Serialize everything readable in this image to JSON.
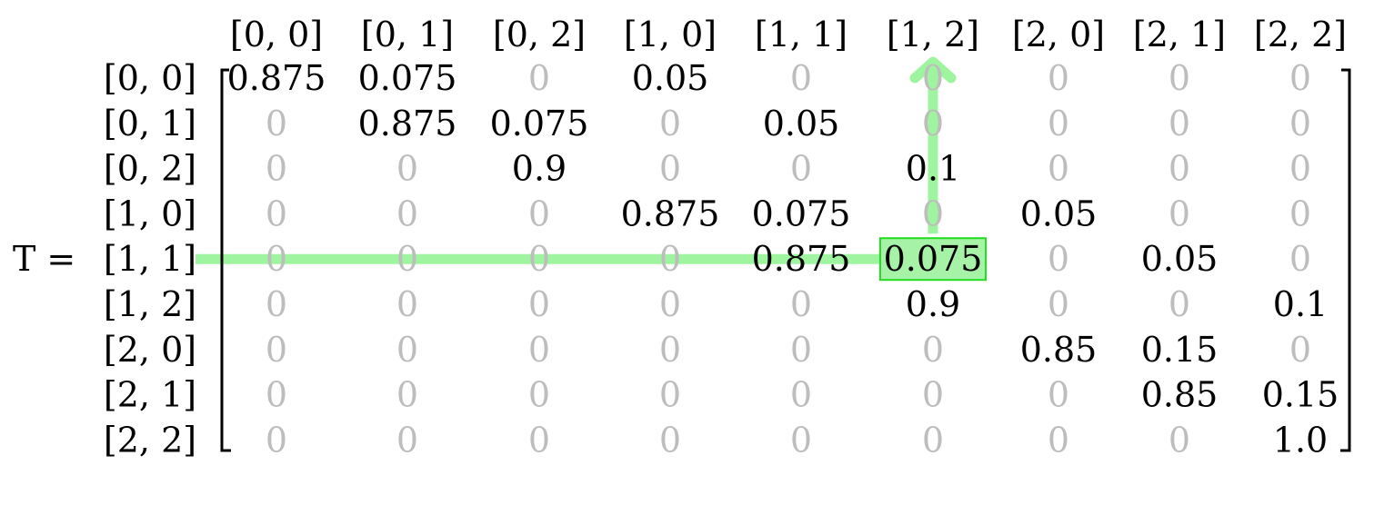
{
  "lhs": "T =",
  "col_labels": [
    "[0, 0]",
    "[0, 1]",
    "[0, 2]",
    "[1, 0]",
    "[1, 1]",
    "[1, 2]",
    "[2, 0]",
    "[2, 1]",
    "[2, 2]"
  ],
  "row_labels": [
    "[0, 0]",
    "[0, 1]",
    "[0, 2]",
    "[1, 0]",
    "[1, 1]",
    "[1, 2]",
    "[2, 0]",
    "[2, 1]",
    "[2, 2]"
  ],
  "matrix": [
    [
      "0.875",
      "0.075",
      "0",
      "0.05",
      "0",
      "0",
      "0",
      "0",
      "0"
    ],
    [
      "0",
      "0.875",
      "0.075",
      "0",
      "0.05",
      "0",
      "0",
      "0",
      "0"
    ],
    [
      "0",
      "0",
      "0.9",
      "0",
      "0",
      "0.1",
      "0",
      "0",
      "0"
    ],
    [
      "0",
      "0",
      "0",
      "0.875",
      "0.075",
      "0",
      "0.05",
      "0",
      "0"
    ],
    [
      "0",
      "0",
      "0",
      "0",
      "0.875",
      "0.075",
      "0",
      "0.05",
      "0"
    ],
    [
      "0",
      "0",
      "0",
      "0",
      "0",
      "0.9",
      "0",
      "0",
      "0.1"
    ],
    [
      "0",
      "0",
      "0",
      "0",
      "0",
      "0",
      "0.85",
      "0.15",
      "0"
    ],
    [
      "0",
      "0",
      "0",
      "0",
      "0",
      "0",
      "0",
      "0.85",
      "0.15"
    ],
    [
      "0",
      "0",
      "0",
      "0",
      "0",
      "0",
      "0",
      "0",
      "1.0"
    ]
  ],
  "highlight": {
    "row": 4,
    "col": 5
  },
  "colors": {
    "text": "#000000",
    "zero": "#bdbdbd",
    "highlight_fill": "#a6f2a6",
    "highlight_stroke": "#22dd22",
    "arrow": "#9ff59f"
  }
}
